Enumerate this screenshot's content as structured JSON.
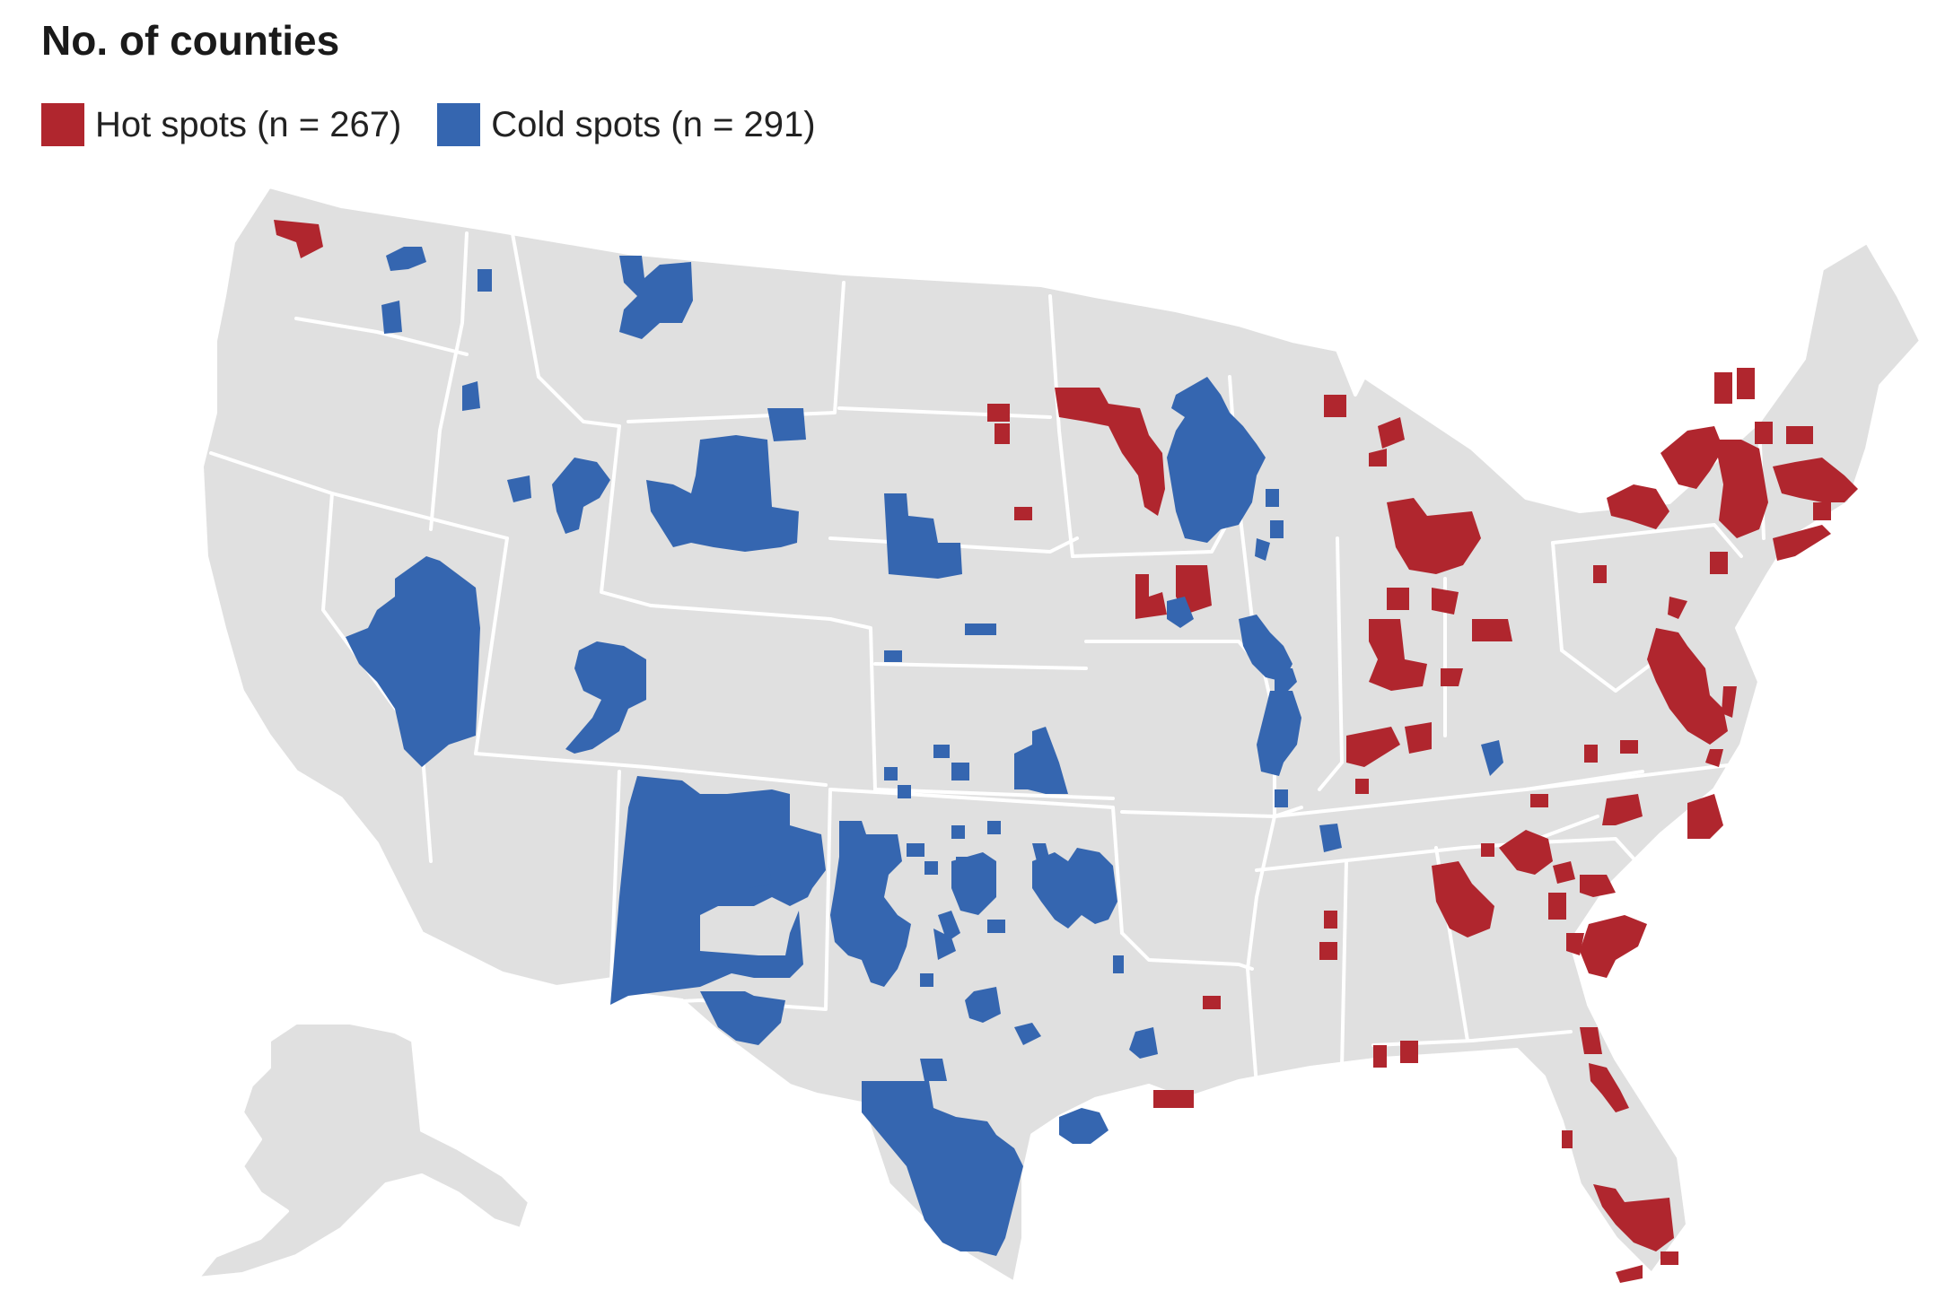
{
  "title": "No. of counties",
  "legend": {
    "hot": {
      "label": "Hot spots (n = 267)",
      "color": "#b0262e"
    },
    "cold": {
      "label": "Cold spots (n = 291)",
      "color": "#3566b0"
    }
  },
  "map": {
    "land_color": "#e0e0e0",
    "border_color": "#ffffff"
  }
}
